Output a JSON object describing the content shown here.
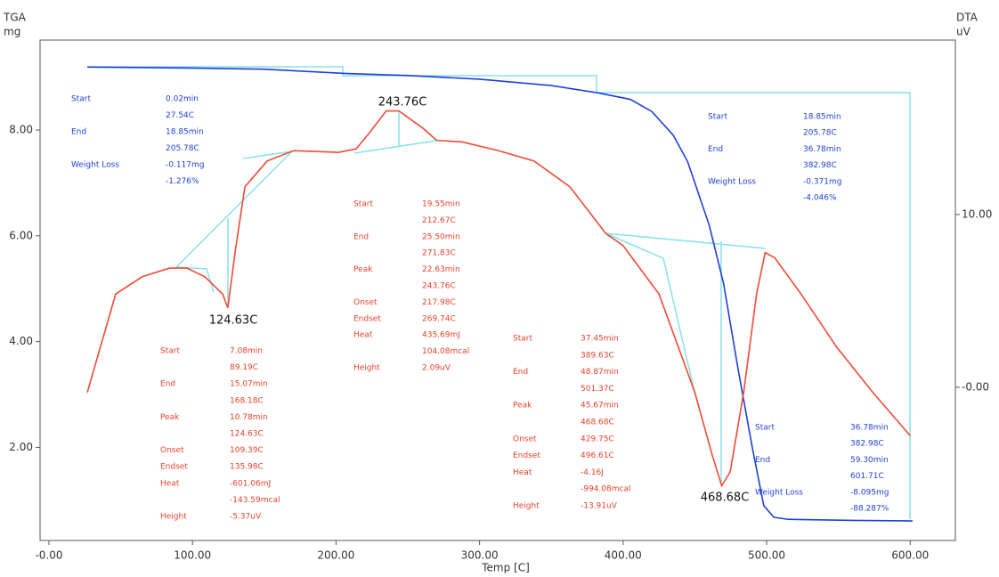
{
  "chart_data": {
    "type": "line",
    "y_label": "TGA",
    "y_unit": "mg",
    "y2_label": "DTA",
    "y2_unit": "uV",
    "x_label": "Temp [C]",
    "xlim": [
      -6.2,
      631.5
    ],
    "ylim": [
      0.24,
      9.7
    ],
    "y2lim": [
      -8.87,
      20.1
    ],
    "xticks": [
      {
        "value": 0,
        "label": "-0.00"
      },
      {
        "value": 100,
        "label": "100.00"
      },
      {
        "value": 200,
        "label": "200.00"
      },
      {
        "value": 300,
        "label": "300.00"
      },
      {
        "value": 400,
        "label": "400.00"
      },
      {
        "value": 500,
        "label": "500.00"
      },
      {
        "value": 600,
        "label": "600.00"
      }
    ],
    "yticks": [
      {
        "value": 2,
        "label": "2.00"
      },
      {
        "value": 4,
        "label": "4.00"
      },
      {
        "value": 6,
        "label": "6.00"
      },
      {
        "value": 8,
        "label": "8.00"
      }
    ],
    "y2ticks": [
      {
        "value": 0,
        "label": "-0.00"
      },
      {
        "value": 10,
        "label": "10.00"
      }
    ],
    "grid": false,
    "series": [
      {
        "color": "#1f3fd6",
        "axis": "y",
        "x": [
          26.7,
          100,
          150,
          205.8,
          250,
          300,
          350,
          383,
          405,
          420,
          435,
          445,
          450,
          460,
          470,
          480,
          490,
          498,
          505,
          515,
          560,
          601.7
        ],
        "values": [
          9.19,
          9.17,
          9.15,
          9.07,
          9.03,
          8.96,
          8.84,
          8.7,
          8.58,
          8.35,
          7.9,
          7.4,
          7.0,
          6.2,
          5.1,
          3.5,
          2.0,
          0.9,
          0.68,
          0.64,
          0.62,
          0.61
        ]
      },
      {
        "color": "#ef4a35",
        "axis": "y2",
        "x": [
          26.7,
          46.5,
          65,
          84,
          96,
          108.6,
          121,
          124.6,
          130,
          136.5,
          152,
          170.6,
          201.6,
          214,
          223,
          235,
          243.8,
          260.5,
          270,
          288,
          313,
          338,
          363,
          388,
          400,
          425,
          450,
          462,
          468.7,
          474.6,
          484,
          493,
          499,
          505.6,
          524,
          549,
          574,
          600
        ],
        "values": [
          -0.3,
          5.4,
          6.4,
          6.9,
          6.9,
          6.4,
          5.4,
          4.6,
          8.0,
          11.6,
          13.1,
          13.7,
          13.6,
          13.8,
          14.7,
          16.0,
          16.0,
          15.0,
          14.3,
          14.2,
          13.7,
          13.1,
          11.6,
          8.9,
          8.2,
          5.4,
          -0.3,
          -3.9,
          -5.7,
          -4.9,
          -0.3,
          5.4,
          7.8,
          7.5,
          5.4,
          2.3,
          -0.3,
          -2.8
        ]
      }
    ],
    "peak_labels": [
      "124.63C",
      "243.76C",
      "468.68C"
    ],
    "blocks": [
      {
        "color": "#1f3fd6",
        "rows": [
          {
            "label": "Start",
            "lines": [
              "0.02min",
              "27.54C"
            ]
          },
          {
            "label": "End",
            "lines": [
              "18.85min",
              "205.78C"
            ]
          },
          {
            "label": "Weight Loss",
            "lines": [
              "-0.117mg",
              "-1.276%"
            ]
          }
        ]
      },
      {
        "color": "#1f3fd6",
        "rows": [
          {
            "label": "Start",
            "lines": [
              "18.85min",
              "205.78C"
            ]
          },
          {
            "label": "End",
            "lines": [
              "36.78min",
              "382.98C"
            ]
          },
          {
            "label": "Weight Loss",
            "lines": [
              "-0.371mg",
              "-4.046%"
            ]
          }
        ]
      },
      {
        "color": "#1f3fd6",
        "rows": [
          {
            "label": "Start",
            "lines": [
              "36.78min",
              "382.98C"
            ]
          },
          {
            "label": "End",
            "lines": [
              "59.30min",
              "601.71C"
            ]
          },
          {
            "label": "Weight Loss",
            "lines": [
              "-8.095mg",
              "-88.287%"
            ]
          }
        ]
      },
      {
        "color": "#e8412a",
        "rows": [
          {
            "label": "Start",
            "lines": [
              "7.08min",
              "89.19C"
            ]
          },
          {
            "label": "End",
            "lines": [
              "15.07min",
              "168.18C"
            ]
          },
          {
            "label": "Peak",
            "lines": [
              "10.78min",
              "124.63C"
            ]
          },
          {
            "label": "Onset",
            "lines": [
              "109.39C"
            ]
          },
          {
            "label": "Endset",
            "lines": [
              "135.98C"
            ]
          },
          {
            "label": "Heat",
            "lines": [
              "-601.06mJ",
              "-143.59mcal"
            ]
          },
          {
            "label": "Height",
            "lines": [
              "-5.37uV"
            ]
          }
        ]
      },
      {
        "color": "#e8412a",
        "rows": [
          {
            "label": "Start",
            "lines": [
              "19.55min",
              "212.67C"
            ]
          },
          {
            "label": "End",
            "lines": [
              "25.50min",
              "271.83C"
            ]
          },
          {
            "label": "Peak",
            "lines": [
              "22.63min",
              "243.76C"
            ]
          },
          {
            "label": "Onset",
            "lines": [
              "217.98C"
            ]
          },
          {
            "label": "Endset",
            "lines": [
              "269.74C"
            ]
          },
          {
            "label": "Heat",
            "lines": [
              "435.69mJ",
              "104.08mcal"
            ]
          },
          {
            "label": "Height",
            "lines": [
              "2.09uV"
            ]
          }
        ]
      },
      {
        "color": "#e8412a",
        "rows": [
          {
            "label": "Start",
            "lines": [
              "37.45min",
              "389.63C"
            ]
          },
          {
            "label": "End",
            "lines": [
              "48.87min",
              "501.37C"
            ]
          },
          {
            "label": "Peak",
            "lines": [
              "45.67min",
              "468.68C"
            ]
          },
          {
            "label": "Onset",
            "lines": [
              "429.75C"
            ]
          },
          {
            "label": "Endset",
            "lines": [
              "496.61C"
            ]
          },
          {
            "label": "Heat",
            "lines": [
              "-4.16J",
              "-994.08mcal"
            ]
          },
          {
            "label": "Height",
            "lines": [
              "-13.91uV"
            ]
          }
        ]
      }
    ]
  }
}
